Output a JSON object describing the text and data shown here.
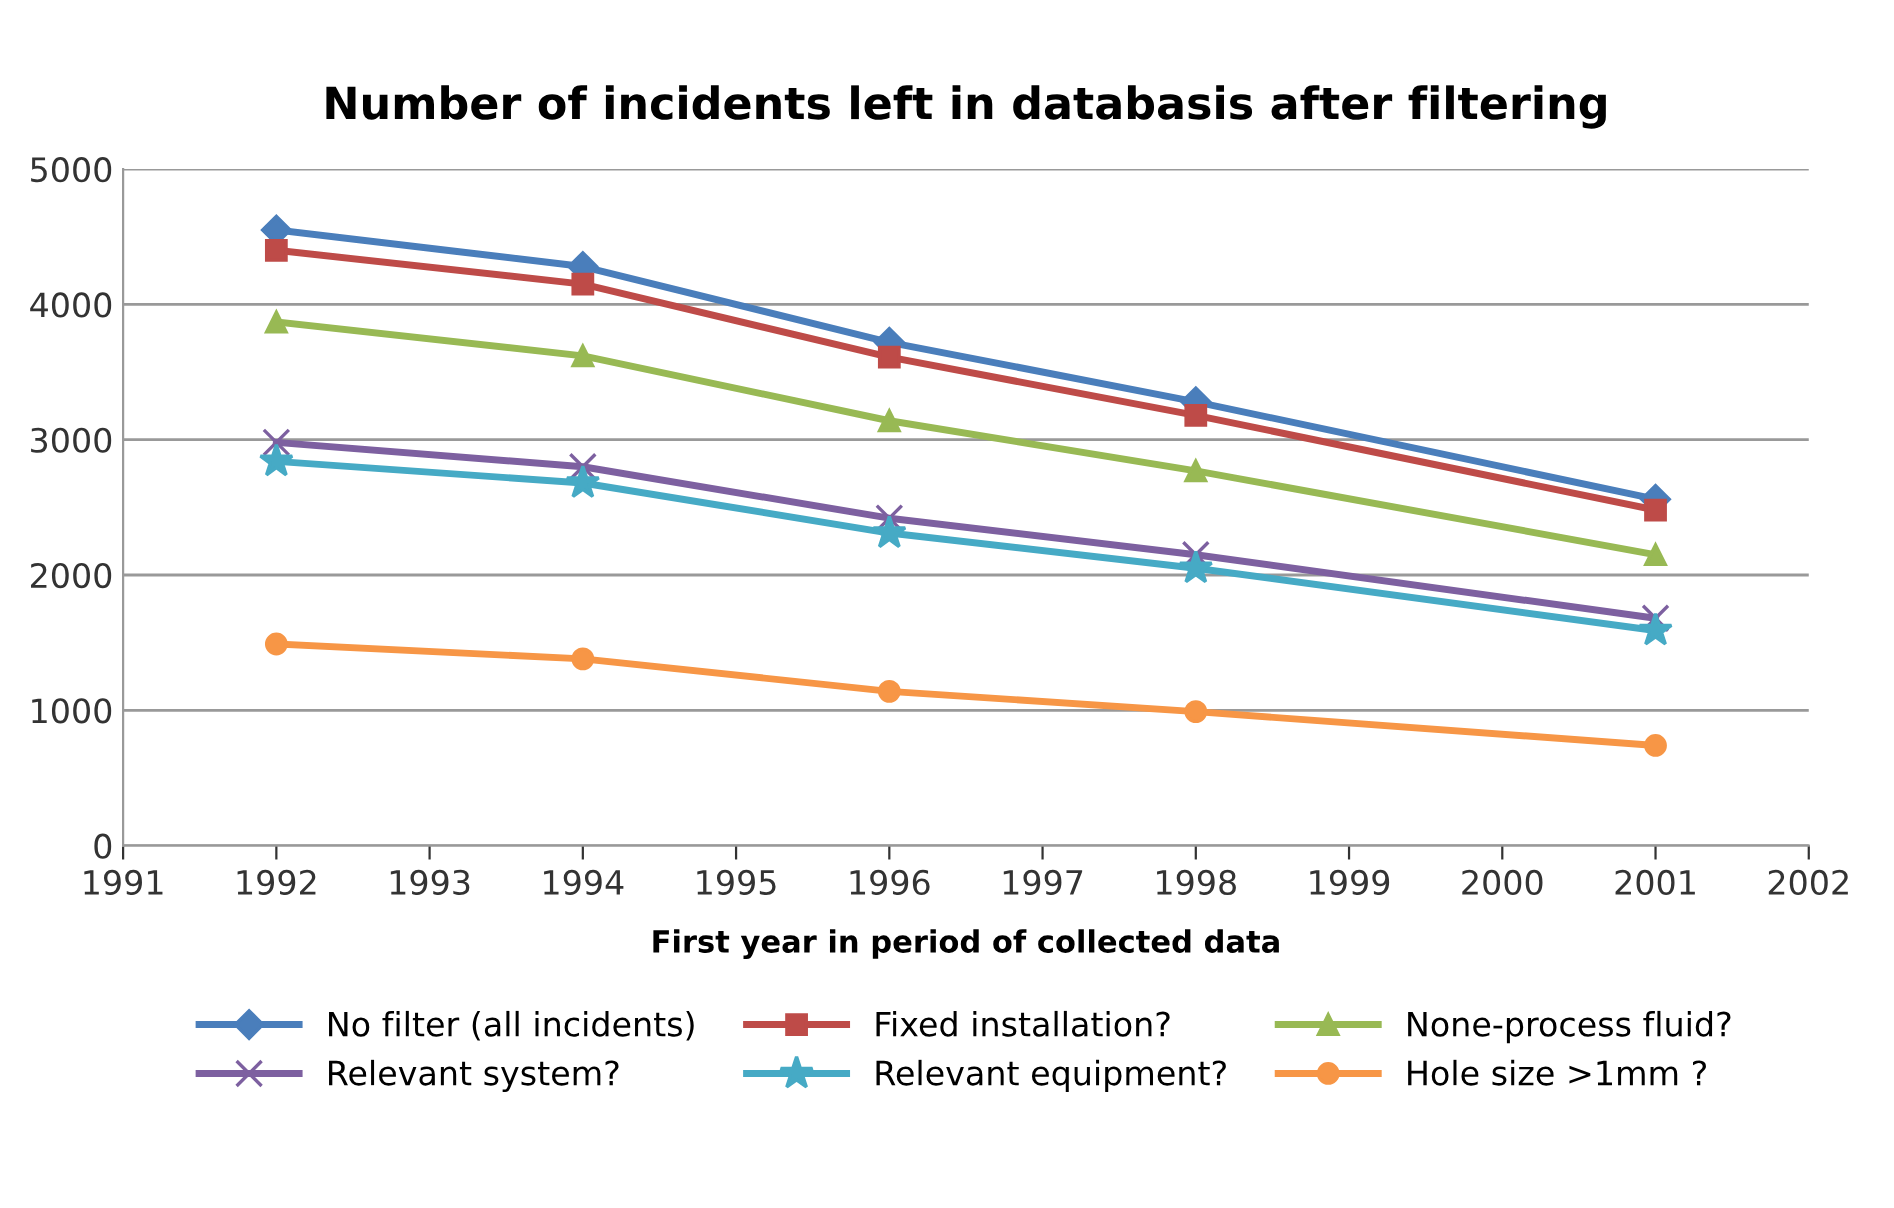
{
  "chart_data": {
    "type": "line",
    "title": "Number of incidents left in databasis after filtering",
    "xlabel": "First year in period of collected data",
    "x": [
      1992,
      1994,
      1996,
      1998,
      2001
    ],
    "series": [
      {
        "name": "No filter (all incidents)",
        "color": "#4a7ebb",
        "marker": "diamond",
        "values": [
          4550,
          4280,
          3720,
          3280,
          2560
        ]
      },
      {
        "name": "Fixed installation?",
        "color": "#be4b48",
        "marker": "square",
        "values": [
          4400,
          4150,
          3610,
          3180,
          2480
        ]
      },
      {
        "name": "None-process fluid?",
        "color": "#98b954",
        "marker": "triangle",
        "values": [
          3870,
          3620,
          3140,
          2770,
          2150
        ]
      },
      {
        "name": "Relevant system?",
        "color": "#7d60a0",
        "marker": "cross",
        "values": [
          2980,
          2800,
          2420,
          2150,
          1680
        ]
      },
      {
        "name": "Relevant equipment?",
        "color": "#46aac5",
        "marker": "star",
        "values": [
          2840,
          2680,
          2310,
          2050,
          1590
        ]
      },
      {
        "name": "Hole size >1mm ?",
        "color": "#f79646",
        "marker": "circle",
        "values": [
          1490,
          1380,
          1140,
          990,
          740
        ]
      }
    ],
    "xlim": [
      1991,
      2002
    ],
    "xticks": [
      1991,
      1992,
      1993,
      1994,
      1995,
      1996,
      1997,
      1998,
      1999,
      2000,
      2001,
      2002
    ],
    "ylim": [
      0,
      5000
    ],
    "yticks": [
      0,
      1000,
      2000,
      3000,
      4000,
      5000
    ],
    "grid": "y",
    "legend": "bottom",
    "line_style": "solid"
  }
}
